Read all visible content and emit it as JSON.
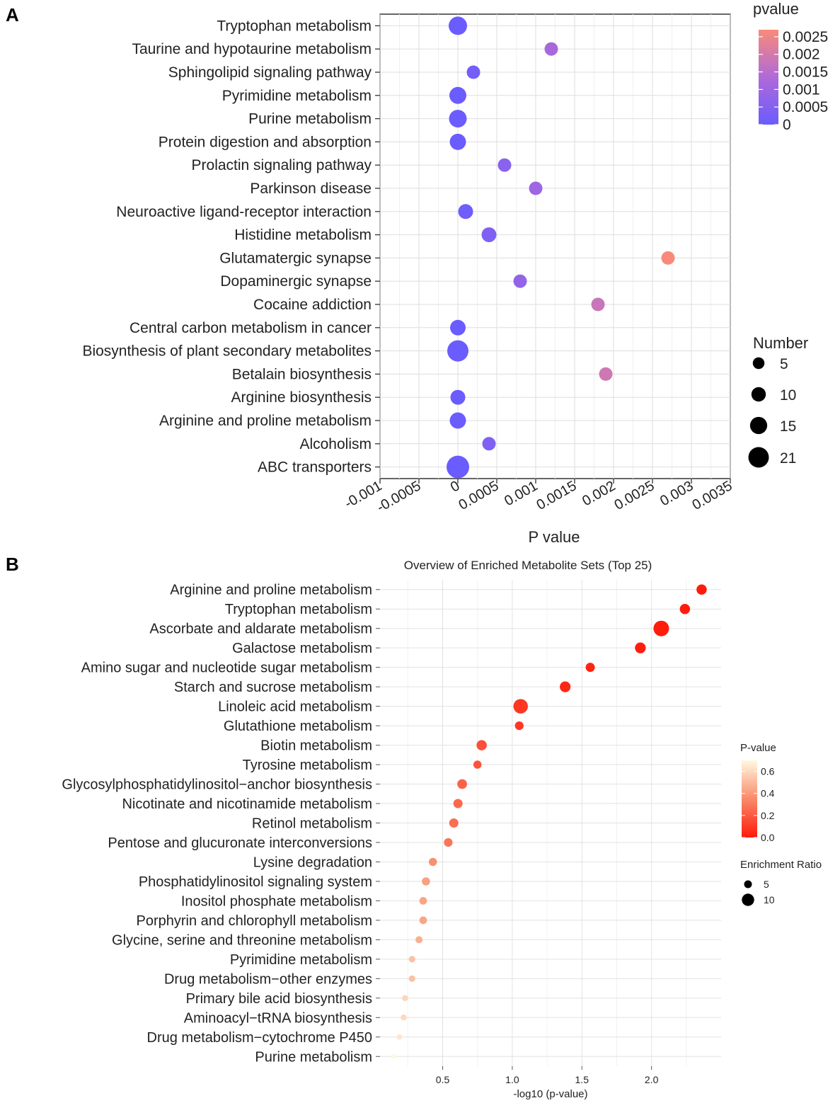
{
  "chart_data": [
    {
      "panel": "A",
      "type": "scatter",
      "title": "",
      "xlabel": "P value",
      "ylabel": "",
      "xlim": [
        -0.001,
        0.0035
      ],
      "x_ticks": [
        "-0.001",
        "-0.0005",
        "0",
        "0.0005",
        "0.001",
        "0.0015",
        "0.002",
        "0.0025",
        "0.003",
        "0.0035"
      ],
      "x_tick_values": [
        -0.001,
        -0.0005,
        0,
        0.0005,
        0.001,
        0.0015,
        0.002,
        0.0025,
        0.003,
        0.0035
      ],
      "grid": true,
      "color_legend": {
        "title": "pvalue",
        "min": 0,
        "max": 0.0027,
        "low_color": "#6a5cff",
        "high_color": "#f98a7a",
        "ticks": [
          "0.0025",
          "0.002",
          "0.0015",
          "0.001",
          "0.0005",
          "0"
        ],
        "tick_values": [
          0.0025,
          0.002,
          0.0015,
          0.001,
          0.0005,
          0
        ]
      },
      "size_legend": {
        "title": "Number",
        "labels": [
          "5",
          "10",
          "15",
          "21"
        ],
        "values": [
          5,
          10,
          15,
          21
        ],
        "range": [
          5,
          21
        ]
      },
      "points": [
        {
          "label": "Tryptophan metabolism",
          "x": 0.0,
          "number": 15
        },
        {
          "label": "Taurine and hypotaurine metabolism",
          "x": 0.0012,
          "number": 8
        },
        {
          "label": "Sphingolipid signaling pathway",
          "x": 0.0002,
          "number": 8
        },
        {
          "label": "Pyrimidine metabolism",
          "x": 0.0,
          "number": 13
        },
        {
          "label": "Purine metabolism",
          "x": 0.0,
          "number": 14
        },
        {
          "label": "Protein digestion and absorption",
          "x": 0.0,
          "number": 12
        },
        {
          "label": "Prolactin signaling pathway",
          "x": 0.0006,
          "number": 8
        },
        {
          "label": "Parkinson disease",
          "x": 0.001,
          "number": 8
        },
        {
          "label": "Neuroactive ligand-receptor interaction",
          "x": 0.0001,
          "number": 10
        },
        {
          "label": "Histidine metabolism",
          "x": 0.0004,
          "number": 10
        },
        {
          "label": "Glutamatergic synapse",
          "x": 0.0027,
          "number": 8
        },
        {
          "label": "Dopaminergic synapse",
          "x": 0.0008,
          "number": 8
        },
        {
          "label": "Cocaine addiction",
          "x": 0.0018,
          "number": 8
        },
        {
          "label": "Central carbon metabolism in cancer",
          "x": 0.0,
          "number": 11
        },
        {
          "label": "Biosynthesis of plant secondary metabolites",
          "x": 0.0,
          "number": 19
        },
        {
          "label": "Betalain biosynthesis",
          "x": 0.0019,
          "number": 8
        },
        {
          "label": "Arginine biosynthesis",
          "x": 0.0,
          "number": 10
        },
        {
          "label": "Arginine and proline metabolism",
          "x": 0.0,
          "number": 12
        },
        {
          "label": "Alcoholism",
          "x": 0.0004,
          "number": 8
        },
        {
          "label": "ABC transporters",
          "x": 0.0,
          "number": 21
        }
      ]
    },
    {
      "panel": "B",
      "type": "scatter",
      "title": "Overview of Enriched Metabolite Sets (Top 25)",
      "xlabel": "-log10 (p-value)",
      "ylabel": "",
      "xlim": [
        0.05,
        2.5
      ],
      "x_ticks": [
        "0.5",
        "1.0",
        "1.5",
        "2.0"
      ],
      "x_tick_values": [
        0.5,
        1.0,
        1.5,
        2.0
      ],
      "grid": true,
      "color_legend": {
        "title": "P-value",
        "min": 0.0,
        "max": 0.7,
        "low_color": "#ff1a0a",
        "high_color": "#fff8e0",
        "ticks": [
          "0.6",
          "0.4",
          "0.2",
          "0.0"
        ],
        "tick_values": [
          0.6,
          0.4,
          0.2,
          0.0
        ]
      },
      "size_legend": {
        "title": "Enrichment Ratio",
        "labels": [
          "5",
          "10"
        ],
        "values": [
          5,
          10
        ],
        "range": [
          1,
          11
        ]
      },
      "points": [
        {
          "label": "Arginine and proline metabolism",
          "x": 2.36,
          "ratio": 6
        },
        {
          "label": "Tryptophan metabolism",
          "x": 2.24,
          "ratio": 6
        },
        {
          "label": "Ascorbate and aldarate metabolism",
          "x": 2.07,
          "ratio": 11
        },
        {
          "label": "Galactose metabolism",
          "x": 1.92,
          "ratio": 6.5
        },
        {
          "label": "Amino sugar and nucleotide sugar metabolism",
          "x": 1.56,
          "ratio": 5
        },
        {
          "label": "Starch and sucrose metabolism",
          "x": 1.38,
          "ratio": 6.5
        },
        {
          "label": "Linoleic acid metabolism",
          "x": 1.06,
          "ratio": 10
        },
        {
          "label": "Glutathione metabolism",
          "x": 1.05,
          "ratio": 4.5
        },
        {
          "label": "Biotin metabolism",
          "x": 0.78,
          "ratio": 6
        },
        {
          "label": "Tyrosine metabolism",
          "x": 0.75,
          "ratio": 4
        },
        {
          "label": "Glycosylphosphatidylinositol−anchor biosynthesis",
          "x": 0.64,
          "ratio": 5.5
        },
        {
          "label": "Nicotinate and nicotinamide metabolism",
          "x": 0.61,
          "ratio": 5
        },
        {
          "label": "Retinol metabolism",
          "x": 0.58,
          "ratio": 5
        },
        {
          "label": "Pentose and glucuronate interconversions",
          "x": 0.54,
          "ratio": 4.5
        },
        {
          "label": "Lysine degradation",
          "x": 0.43,
          "ratio": 4
        },
        {
          "label": "Phosphatidylinositol signaling system",
          "x": 0.38,
          "ratio": 4
        },
        {
          "label": "Inositol phosphate metabolism",
          "x": 0.36,
          "ratio": 3.5
        },
        {
          "label": "Porphyrin and chlorophyll metabolism",
          "x": 0.36,
          "ratio": 3.5
        },
        {
          "label": "Glycine, serine and threonine metabolism",
          "x": 0.33,
          "ratio": 3
        },
        {
          "label": "Pyrimidine metabolism",
          "x": 0.28,
          "ratio": 2.5
        },
        {
          "label": "Drug metabolism−other enzymes",
          "x": 0.28,
          "ratio": 2.5
        },
        {
          "label": "Primary bile acid biosynthesis",
          "x": 0.23,
          "ratio": 2
        },
        {
          "label": "Aminoacyl−tRNA biosynthesis",
          "x": 0.22,
          "ratio": 2
        },
        {
          "label": "Drug metabolism−cytochrome P450",
          "x": 0.19,
          "ratio": 1.5
        },
        {
          "label": "Purine metabolism",
          "x": 0.15,
          "ratio": 1
        }
      ]
    }
  ],
  "panel_letters": {
    "a": "A",
    "b": "B"
  }
}
